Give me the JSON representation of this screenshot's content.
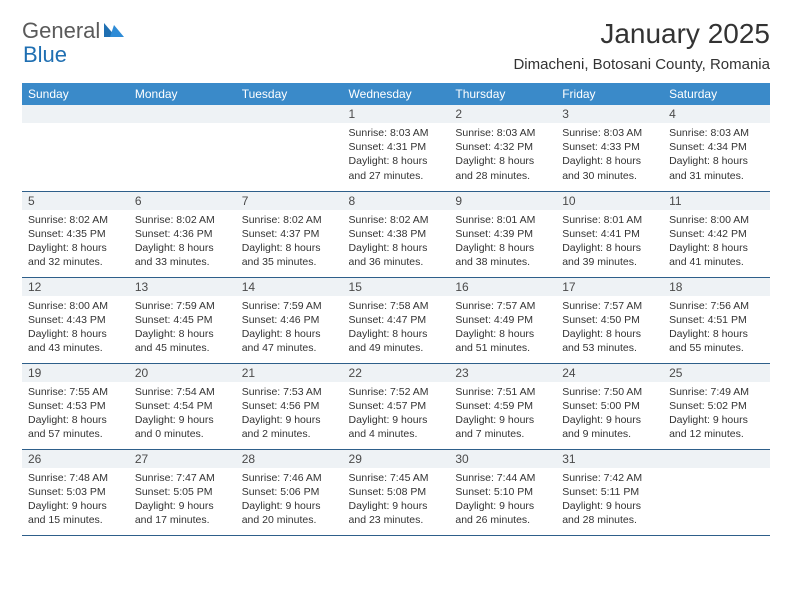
{
  "logo": {
    "text_general": "General",
    "text_blue": "Blue"
  },
  "title": "January 2025",
  "location": "Dimacheni, Botosani County, Romania",
  "colors": {
    "header_bg": "#3a8ac9",
    "header_text": "#ffffff",
    "daynum_bg": "#eef2f5",
    "row_border": "#2e5f8a",
    "text": "#333333",
    "logo_blue": "#1f6fb2",
    "logo_gray": "#5a5a5a"
  },
  "day_headers": [
    "Sunday",
    "Monday",
    "Tuesday",
    "Wednesday",
    "Thursday",
    "Friday",
    "Saturday"
  ],
  "weeks": [
    [
      {
        "n": "",
        "sunrise": "",
        "sunset": "",
        "daylight": ""
      },
      {
        "n": "",
        "sunrise": "",
        "sunset": "",
        "daylight": ""
      },
      {
        "n": "",
        "sunrise": "",
        "sunset": "",
        "daylight": ""
      },
      {
        "n": "1",
        "sunrise": "Sunrise: 8:03 AM",
        "sunset": "Sunset: 4:31 PM",
        "daylight": "Daylight: 8 hours and 27 minutes."
      },
      {
        "n": "2",
        "sunrise": "Sunrise: 8:03 AM",
        "sunset": "Sunset: 4:32 PM",
        "daylight": "Daylight: 8 hours and 28 minutes."
      },
      {
        "n": "3",
        "sunrise": "Sunrise: 8:03 AM",
        "sunset": "Sunset: 4:33 PM",
        "daylight": "Daylight: 8 hours and 30 minutes."
      },
      {
        "n": "4",
        "sunrise": "Sunrise: 8:03 AM",
        "sunset": "Sunset: 4:34 PM",
        "daylight": "Daylight: 8 hours and 31 minutes."
      }
    ],
    [
      {
        "n": "5",
        "sunrise": "Sunrise: 8:02 AM",
        "sunset": "Sunset: 4:35 PM",
        "daylight": "Daylight: 8 hours and 32 minutes."
      },
      {
        "n": "6",
        "sunrise": "Sunrise: 8:02 AM",
        "sunset": "Sunset: 4:36 PM",
        "daylight": "Daylight: 8 hours and 33 minutes."
      },
      {
        "n": "7",
        "sunrise": "Sunrise: 8:02 AM",
        "sunset": "Sunset: 4:37 PM",
        "daylight": "Daylight: 8 hours and 35 minutes."
      },
      {
        "n": "8",
        "sunrise": "Sunrise: 8:02 AM",
        "sunset": "Sunset: 4:38 PM",
        "daylight": "Daylight: 8 hours and 36 minutes."
      },
      {
        "n": "9",
        "sunrise": "Sunrise: 8:01 AM",
        "sunset": "Sunset: 4:39 PM",
        "daylight": "Daylight: 8 hours and 38 minutes."
      },
      {
        "n": "10",
        "sunrise": "Sunrise: 8:01 AM",
        "sunset": "Sunset: 4:41 PM",
        "daylight": "Daylight: 8 hours and 39 minutes."
      },
      {
        "n": "11",
        "sunrise": "Sunrise: 8:00 AM",
        "sunset": "Sunset: 4:42 PM",
        "daylight": "Daylight: 8 hours and 41 minutes."
      }
    ],
    [
      {
        "n": "12",
        "sunrise": "Sunrise: 8:00 AM",
        "sunset": "Sunset: 4:43 PM",
        "daylight": "Daylight: 8 hours and 43 minutes."
      },
      {
        "n": "13",
        "sunrise": "Sunrise: 7:59 AM",
        "sunset": "Sunset: 4:45 PM",
        "daylight": "Daylight: 8 hours and 45 minutes."
      },
      {
        "n": "14",
        "sunrise": "Sunrise: 7:59 AM",
        "sunset": "Sunset: 4:46 PM",
        "daylight": "Daylight: 8 hours and 47 minutes."
      },
      {
        "n": "15",
        "sunrise": "Sunrise: 7:58 AM",
        "sunset": "Sunset: 4:47 PM",
        "daylight": "Daylight: 8 hours and 49 minutes."
      },
      {
        "n": "16",
        "sunrise": "Sunrise: 7:57 AM",
        "sunset": "Sunset: 4:49 PM",
        "daylight": "Daylight: 8 hours and 51 minutes."
      },
      {
        "n": "17",
        "sunrise": "Sunrise: 7:57 AM",
        "sunset": "Sunset: 4:50 PM",
        "daylight": "Daylight: 8 hours and 53 minutes."
      },
      {
        "n": "18",
        "sunrise": "Sunrise: 7:56 AM",
        "sunset": "Sunset: 4:51 PM",
        "daylight": "Daylight: 8 hours and 55 minutes."
      }
    ],
    [
      {
        "n": "19",
        "sunrise": "Sunrise: 7:55 AM",
        "sunset": "Sunset: 4:53 PM",
        "daylight": "Daylight: 8 hours and 57 minutes."
      },
      {
        "n": "20",
        "sunrise": "Sunrise: 7:54 AM",
        "sunset": "Sunset: 4:54 PM",
        "daylight": "Daylight: 9 hours and 0 minutes."
      },
      {
        "n": "21",
        "sunrise": "Sunrise: 7:53 AM",
        "sunset": "Sunset: 4:56 PM",
        "daylight": "Daylight: 9 hours and 2 minutes."
      },
      {
        "n": "22",
        "sunrise": "Sunrise: 7:52 AM",
        "sunset": "Sunset: 4:57 PM",
        "daylight": "Daylight: 9 hours and 4 minutes."
      },
      {
        "n": "23",
        "sunrise": "Sunrise: 7:51 AM",
        "sunset": "Sunset: 4:59 PM",
        "daylight": "Daylight: 9 hours and 7 minutes."
      },
      {
        "n": "24",
        "sunrise": "Sunrise: 7:50 AM",
        "sunset": "Sunset: 5:00 PM",
        "daylight": "Daylight: 9 hours and 9 minutes."
      },
      {
        "n": "25",
        "sunrise": "Sunrise: 7:49 AM",
        "sunset": "Sunset: 5:02 PM",
        "daylight": "Daylight: 9 hours and 12 minutes."
      }
    ],
    [
      {
        "n": "26",
        "sunrise": "Sunrise: 7:48 AM",
        "sunset": "Sunset: 5:03 PM",
        "daylight": "Daylight: 9 hours and 15 minutes."
      },
      {
        "n": "27",
        "sunrise": "Sunrise: 7:47 AM",
        "sunset": "Sunset: 5:05 PM",
        "daylight": "Daylight: 9 hours and 17 minutes."
      },
      {
        "n": "28",
        "sunrise": "Sunrise: 7:46 AM",
        "sunset": "Sunset: 5:06 PM",
        "daylight": "Daylight: 9 hours and 20 minutes."
      },
      {
        "n": "29",
        "sunrise": "Sunrise: 7:45 AM",
        "sunset": "Sunset: 5:08 PM",
        "daylight": "Daylight: 9 hours and 23 minutes."
      },
      {
        "n": "30",
        "sunrise": "Sunrise: 7:44 AM",
        "sunset": "Sunset: 5:10 PM",
        "daylight": "Daylight: 9 hours and 26 minutes."
      },
      {
        "n": "31",
        "sunrise": "Sunrise: 7:42 AM",
        "sunset": "Sunset: 5:11 PM",
        "daylight": "Daylight: 9 hours and 28 minutes."
      },
      {
        "n": "",
        "sunrise": "",
        "sunset": "",
        "daylight": ""
      }
    ]
  ]
}
